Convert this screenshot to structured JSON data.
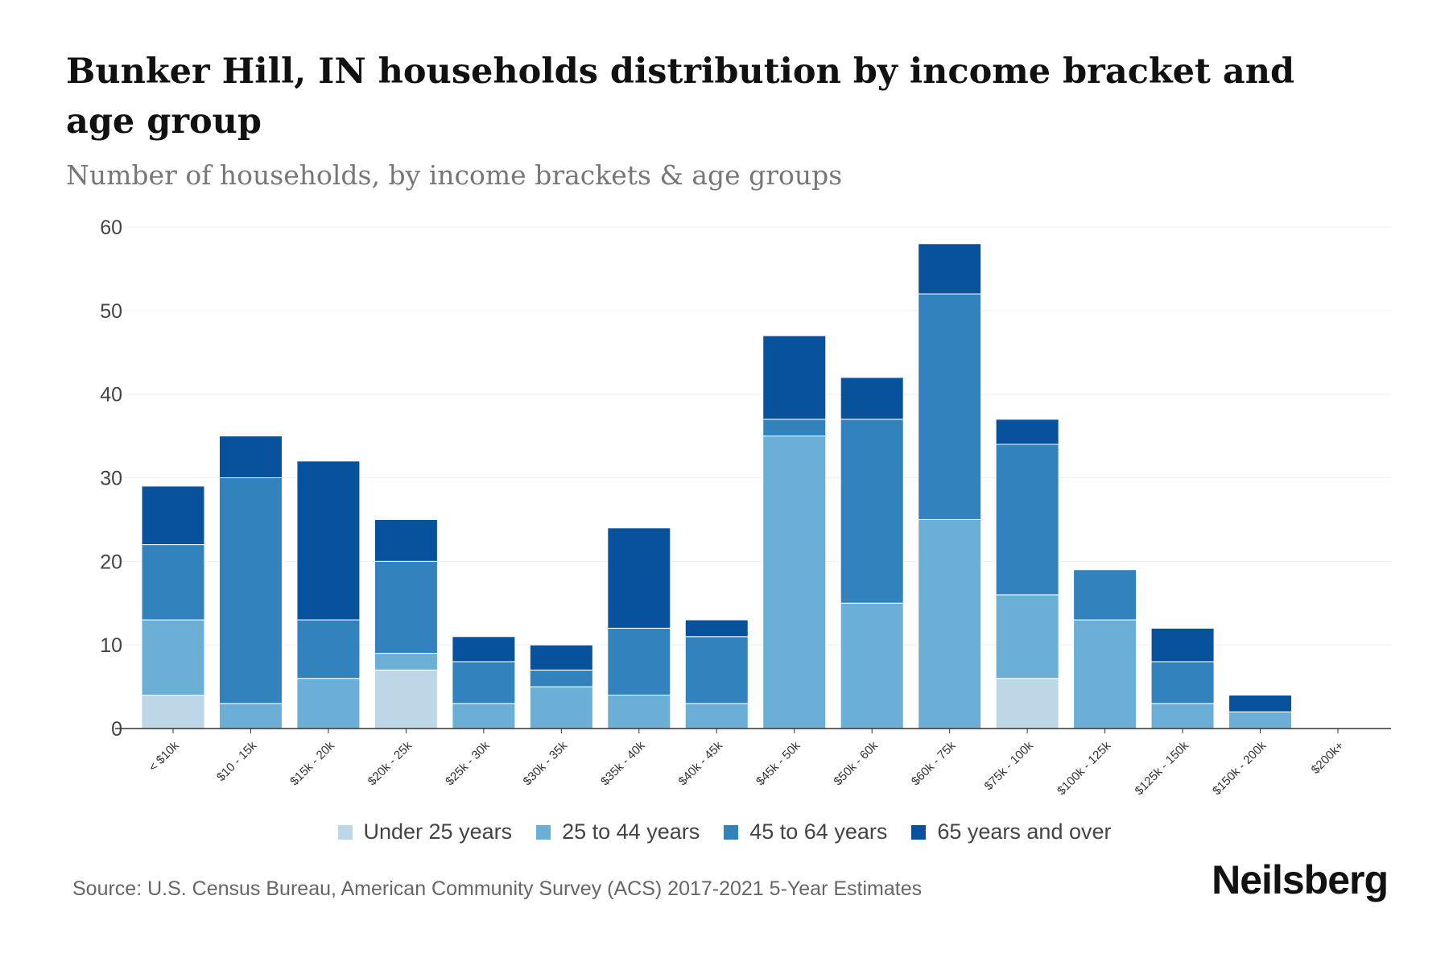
{
  "title": "Bunker Hill, IN households distribution by income bracket and age group",
  "subtitle": "Number of households, by income brackets & age groups",
  "source": "Source: U.S. Census Bureau, American Community Survey (ACS) 2017-2021 5-Year Estimates",
  "logo": "Neilsberg",
  "chart_data": {
    "type": "bar",
    "stacked": true,
    "title": "Bunker Hill, IN households distribution by income bracket and age group",
    "xlabel": "",
    "ylabel": "",
    "ylim": [
      0,
      60
    ],
    "yticks": [
      0,
      10,
      20,
      30,
      40,
      50,
      60
    ],
    "grid": true,
    "legend": "bottom",
    "categories": [
      "< $10k",
      "$10 - 15k",
      "$15k - 20k",
      "$20k - 25k",
      "$25k - 30k",
      "$30k - 35k",
      "$35k - 40k",
      "$40k - 45k",
      "$45k - 50k",
      "$50k - 60k",
      "$60k - 75k",
      "$75k - 100k",
      "$100k - 125k",
      "$125k - 150k",
      "$150k - 200k",
      "$200k+"
    ],
    "series": [
      {
        "name": "Under 25 years",
        "color": "#bdd7e7",
        "values": [
          4,
          0,
          0,
          7,
          0,
          0,
          0,
          0,
          0,
          0,
          0,
          6,
          0,
          0,
          0,
          0
        ]
      },
      {
        "name": "25 to 44 years",
        "color": "#6baed6",
        "values": [
          9,
          3,
          6,
          2,
          3,
          5,
          4,
          3,
          35,
          15,
          25,
          10,
          13,
          3,
          2,
          0
        ]
      },
      {
        "name": "45 to 64 years",
        "color": "#3182bd",
        "values": [
          9,
          27,
          7,
          11,
          5,
          2,
          8,
          8,
          2,
          22,
          27,
          18,
          6,
          5,
          0,
          0
        ]
      },
      {
        "name": "65 years and over",
        "color": "#08519c",
        "values": [
          7,
          5,
          19,
          5,
          3,
          3,
          12,
          2,
          10,
          5,
          6,
          3,
          0,
          4,
          2,
          0
        ]
      }
    ]
  }
}
